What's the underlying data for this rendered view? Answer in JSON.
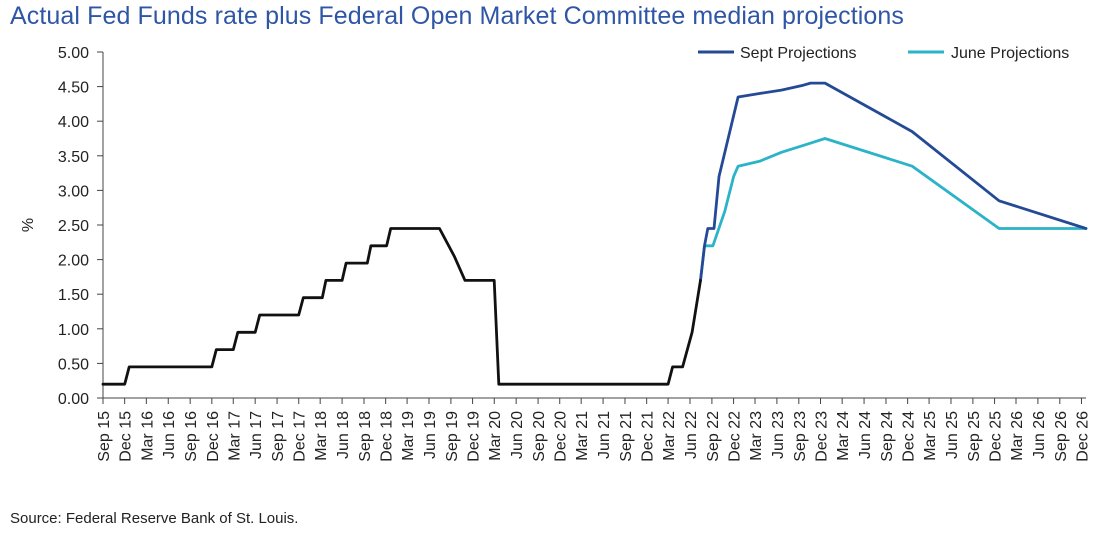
{
  "title": "Actual Fed Funds rate plus Federal Open Market Committee median projections",
  "source": "Source: Federal Reserve Bank of St. Louis.",
  "colors": {
    "actual": "#111111",
    "sept": "#244a96",
    "june": "#2bb3c7",
    "axis": "#444444",
    "title": "#2f56a6"
  },
  "chart_data": {
    "type": "line",
    "ylabel": "%",
    "xlabel": "",
    "ylim": [
      0,
      5
    ],
    "yticks": [
      "0.00",
      "0.50",
      "1.00",
      "1.50",
      "2.00",
      "2.50",
      "3.00",
      "3.50",
      "4.00",
      "4.50",
      "5.00"
    ],
    "grid": false,
    "legend_position": "top-right",
    "x_labels": [
      "Sep 15",
      "Dec 15",
      "Mar 16",
      "Jun 16",
      "Sep 16",
      "Dec 16",
      "Mar 17",
      "Jun 17",
      "Sep 17",
      "Dec 17",
      "Mar 18",
      "Jun 18",
      "Sep 18",
      "Dec 18",
      "Mar 19",
      "Jun 19",
      "Sep 19",
      "Dec 19",
      "Mar 20",
      "Jun 20",
      "Sep 20",
      "Dec 20",
      "Mar 21",
      "Jun 21",
      "Sep 21",
      "Dec 21",
      "Mar 22",
      "Jun 22",
      "Sep 22",
      "Dec 22",
      "Mar 23",
      "Jun 23",
      "Sep 23",
      "Dec 23",
      "Mar 24",
      "Jun 24",
      "Sep 24",
      "Dec 24",
      "Mar 25",
      "Jun 25",
      "Sep 25",
      "Dec 25",
      "Mar 26",
      "Jun 26",
      "Sep 26",
      "Dec 26"
    ],
    "series": [
      {
        "key": "actual",
        "name": "",
        "points": [
          [
            "2015-09-01",
            0.2
          ],
          [
            "2015-12-01",
            0.2
          ],
          [
            "2015-12-20",
            0.45
          ],
          [
            "2016-12-01",
            0.45
          ],
          [
            "2016-12-20",
            0.7
          ],
          [
            "2017-03-01",
            0.7
          ],
          [
            "2017-03-20",
            0.95
          ],
          [
            "2017-06-01",
            0.95
          ],
          [
            "2017-06-20",
            1.2
          ],
          [
            "2017-12-01",
            1.2
          ],
          [
            "2017-12-20",
            1.45
          ],
          [
            "2018-03-10",
            1.45
          ],
          [
            "2018-03-25",
            1.7
          ],
          [
            "2018-06-01",
            1.7
          ],
          [
            "2018-06-18",
            1.95
          ],
          [
            "2018-09-15",
            1.95
          ],
          [
            "2018-09-30",
            2.2
          ],
          [
            "2018-12-05",
            2.2
          ],
          [
            "2018-12-22",
            2.45
          ],
          [
            "2019-07-15",
            2.45
          ],
          [
            "2019-09-15",
            2.05
          ],
          [
            "2019-10-30",
            1.7
          ],
          [
            "2020-03-01",
            1.7
          ],
          [
            "2020-03-20",
            0.2
          ],
          [
            "2022-03-01",
            0.2
          ],
          [
            "2022-03-20",
            0.45
          ],
          [
            "2022-05-01",
            0.45
          ],
          [
            "2022-06-10",
            0.95
          ],
          [
            "2022-07-15",
            1.7
          ]
        ]
      },
      {
        "key": "sept",
        "name": "Sept Projections",
        "points": [
          [
            "2022-07-15",
            1.7
          ],
          [
            "2022-08-01",
            2.2
          ],
          [
            "2022-08-15",
            2.45
          ],
          [
            "2022-09-10",
            2.45
          ],
          [
            "2022-10-01",
            3.2
          ],
          [
            "2022-12-20",
            4.35
          ],
          [
            "2023-03-20",
            4.4
          ],
          [
            "2023-06-20",
            4.45
          ],
          [
            "2023-09-20",
            4.52
          ],
          [
            "2023-10-20",
            4.55
          ],
          [
            "2023-12-20",
            4.55
          ],
          [
            "2024-12-20",
            3.85
          ],
          [
            "2025-12-20",
            2.85
          ],
          [
            "2026-12-20",
            2.45
          ]
        ]
      },
      {
        "key": "june",
        "name": "June Projections",
        "points": [
          [
            "2022-07-15",
            1.7
          ],
          [
            "2022-08-01",
            2.2
          ],
          [
            "2022-09-05",
            2.2
          ],
          [
            "2022-10-25",
            2.7
          ],
          [
            "2022-12-01",
            3.2
          ],
          [
            "2022-12-20",
            3.35
          ],
          [
            "2023-03-20",
            3.42
          ],
          [
            "2023-06-20",
            3.55
          ],
          [
            "2023-09-20",
            3.65
          ],
          [
            "2023-12-20",
            3.75
          ],
          [
            "2024-12-20",
            3.35
          ],
          [
            "2025-12-20",
            2.45
          ],
          [
            "2026-12-20",
            2.45
          ]
        ]
      }
    ]
  }
}
